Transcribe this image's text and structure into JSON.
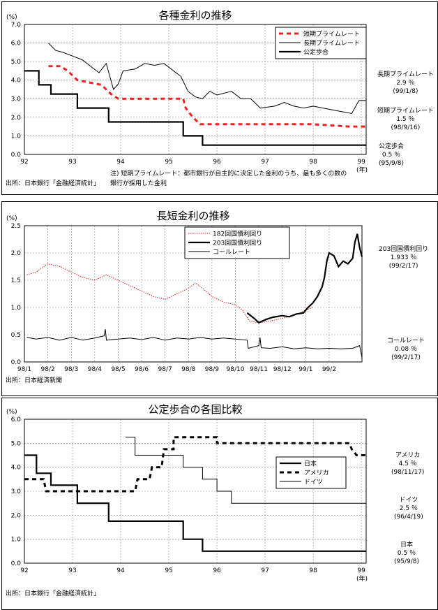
{
  "chart_data": [
    {
      "type": "line",
      "title": "各種金利の推移",
      "y_unit": "(%)",
      "x_unit": "(年)",
      "ylim": [
        0,
        7
      ],
      "xlim": [
        1992,
        1999.1
      ],
      "yticks": [
        "0.0",
        "1.0",
        "2.0",
        "3.0",
        "4.0",
        "5.0",
        "6.0",
        "7.0"
      ],
      "xticks": [
        "92",
        "93",
        "94",
        "95",
        "96",
        "97",
        "98",
        "99"
      ],
      "grid": true,
      "legend_position": "top-right",
      "series": [
        {
          "name": "短期プライムレート",
          "style": "dashed",
          "color": "#ee2222",
          "points": [
            [
              1992.5,
              4.75
            ],
            [
              1992.75,
              4.75
            ],
            [
              1992.9,
              4.5
            ],
            [
              1993.1,
              4.0
            ],
            [
              1993.6,
              3.75
            ],
            [
              1993.8,
              3.25
            ],
            [
              1993.95,
              3.0
            ],
            [
              1995.3,
              3.0
            ],
            [
              1995.35,
              2.5
            ],
            [
              1995.5,
              2.0
            ],
            [
              1995.65,
              1.625
            ],
            [
              1998.0,
              1.625
            ],
            [
              1998.75,
              1.5
            ],
            [
              1999.1,
              1.5
            ]
          ]
        },
        {
          "name": "長期プライムレート",
          "style": "solid-thin",
          "color": "#000000",
          "points": [
            [
              1992.5,
              6.0
            ],
            [
              1992.65,
              5.6
            ],
            [
              1992.8,
              5.5
            ],
            [
              1993.0,
              5.3
            ],
            [
              1993.2,
              5.1
            ],
            [
              1993.4,
              4.7
            ],
            [
              1993.55,
              4.4
            ],
            [
              1993.7,
              4.9
            ],
            [
              1993.85,
              3.5
            ],
            [
              1993.95,
              3.8
            ],
            [
              1994.05,
              4.5
            ],
            [
              1994.3,
              4.6
            ],
            [
              1994.5,
              4.9
            ],
            [
              1994.7,
              4.8
            ],
            [
              1994.9,
              4.9
            ],
            [
              1995.25,
              4.2
            ],
            [
              1995.4,
              3.4
            ],
            [
              1995.55,
              3.1
            ],
            [
              1995.7,
              3.0
            ],
            [
              1995.85,
              3.4
            ],
            [
              1996.0,
              3.2
            ],
            [
              1996.3,
              3.4
            ],
            [
              1996.5,
              3.0
            ],
            [
              1996.7,
              3.0
            ],
            [
              1996.9,
              2.5
            ],
            [
              1997.2,
              2.6
            ],
            [
              1997.4,
              2.8
            ],
            [
              1997.6,
              2.6
            ],
            [
              1997.8,
              2.5
            ],
            [
              1998.0,
              2.6
            ],
            [
              1998.2,
              2.5
            ],
            [
              1998.6,
              2.3
            ],
            [
              1998.8,
              2.2
            ],
            [
              1998.95,
              2.9
            ],
            [
              1999.1,
              2.9
            ]
          ]
        },
        {
          "name": "公定歩合",
          "style": "solid-thick",
          "color": "#000000",
          "points": [
            [
              1992.0,
              4.5
            ],
            [
              1992.3,
              4.5
            ],
            [
              1992.3,
              3.75
            ],
            [
              1992.55,
              3.75
            ],
            [
              1992.55,
              3.25
            ],
            [
              1993.1,
              3.25
            ],
            [
              1993.1,
              2.5
            ],
            [
              1993.75,
              2.5
            ],
            [
              1993.75,
              1.75
            ],
            [
              1995.3,
              1.75
            ],
            [
              1995.3,
              1.0
            ],
            [
              1995.7,
              1.0
            ],
            [
              1995.7,
              0.5
            ],
            [
              1999.1,
              0.5
            ]
          ]
        }
      ],
      "side_notes": [
        {
          "name": "長期プライムレート",
          "value": "2.9 ％",
          "date": "(99/1/8)"
        },
        {
          "name": "短期プライムレート",
          "value": "1.5 ％",
          "date": "(98/9/16)"
        },
        {
          "name": "公定歩合",
          "value": "0.5 ％",
          "date": "(95/9/8)"
        }
      ],
      "notes": [
        "注) 短期プライムレート：都市銀行が自主的に決定した金利のうち、最も多くの数の",
        "銀行が採用した金利"
      ],
      "source": "出所：日本銀行「金融経済統計」"
    },
    {
      "type": "line",
      "title": "長短金利の推移",
      "y_unit": "(%)",
      "ylim": [
        0,
        2.5
      ],
      "xlim": [
        0,
        14.4
      ],
      "yticks": [
        "0.0",
        "0.5",
        "1.0",
        "1.5",
        "2.0",
        "2.5"
      ],
      "xticks": [
        "98/1",
        "98/2",
        "98/3",
        "98/4",
        "98/5",
        "98/6",
        "98/7",
        "98/8",
        "98/9",
        "98/10",
        "98/11",
        "98/12",
        "99/1",
        "99/2"
      ],
      "grid": true,
      "legend_position": "top-center",
      "series": [
        {
          "name": "182回国債利回り",
          "style": "dotted",
          "color": "#ee2222",
          "points": [
            [
              0.1,
              1.6
            ],
            [
              0.5,
              1.65
            ],
            [
              1.0,
              1.8
            ],
            [
              1.5,
              1.75
            ],
            [
              2.0,
              1.65
            ],
            [
              2.5,
              1.55
            ],
            [
              3.0,
              1.5
            ],
            [
              3.5,
              1.6
            ],
            [
              4.0,
              1.5
            ],
            [
              4.5,
              1.4
            ],
            [
              5.0,
              1.3
            ],
            [
              5.5,
              1.2
            ],
            [
              6.0,
              1.15
            ],
            [
              6.5,
              1.25
            ],
            [
              7.0,
              1.35
            ],
            [
              7.3,
              1.45
            ],
            [
              7.6,
              1.35
            ],
            [
              8.0,
              1.2
            ],
            [
              8.5,
              1.1
            ],
            [
              9.0,
              1.05
            ],
            [
              9.3,
              0.95
            ],
            [
              9.6,
              0.75
            ],
            [
              10.0,
              0.72
            ],
            [
              10.5,
              0.75
            ],
            [
              11.0,
              0.8
            ],
            [
              11.5,
              0.85
            ],
            [
              12.0,
              0.95
            ],
            [
              12.3,
              1.0
            ]
          ]
        },
        {
          "name": "203回国債利回り",
          "style": "solid-thick",
          "color": "#000000",
          "points": [
            [
              9.5,
              0.9
            ],
            [
              9.8,
              0.8
            ],
            [
              10.0,
              0.72
            ],
            [
              10.3,
              0.78
            ],
            [
              10.6,
              0.82
            ],
            [
              11.0,
              0.85
            ],
            [
              11.3,
              0.83
            ],
            [
              11.6,
              0.88
            ],
            [
              11.9,
              0.9
            ],
            [
              12.1,
              1.0
            ],
            [
              12.3,
              1.08
            ],
            [
              12.5,
              1.2
            ],
            [
              12.7,
              1.38
            ],
            [
              12.8,
              1.55
            ],
            [
              12.9,
              1.85
            ],
            [
              13.0,
              2.0
            ],
            [
              13.2,
              1.95
            ],
            [
              13.4,
              1.75
            ],
            [
              13.6,
              1.85
            ],
            [
              13.8,
              1.8
            ],
            [
              14.0,
              1.9
            ],
            [
              14.1,
              2.2
            ],
            [
              14.2,
              2.35
            ],
            [
              14.3,
              2.1
            ],
            [
              14.4,
              1.93
            ]
          ]
        },
        {
          "name": "コールレート",
          "style": "solid-thin",
          "color": "#000000",
          "points": [
            [
              0.1,
              0.45
            ],
            [
              0.5,
              0.42
            ],
            [
              1.0,
              0.45
            ],
            [
              1.5,
              0.4
            ],
            [
              2.0,
              0.45
            ],
            [
              2.5,
              0.4
            ],
            [
              3.0,
              0.44
            ],
            [
              3.4,
              0.48
            ],
            [
              3.45,
              0.6
            ],
            [
              3.5,
              0.4
            ],
            [
              4.0,
              0.42
            ],
            [
              4.5,
              0.44
            ],
            [
              5.0,
              0.41
            ],
            [
              5.5,
              0.45
            ],
            [
              6.0,
              0.4
            ],
            [
              6.5,
              0.44
            ],
            [
              7.0,
              0.42
            ],
            [
              7.5,
              0.45
            ],
            [
              8.0,
              0.42
            ],
            [
              8.5,
              0.44
            ],
            [
              9.0,
              0.42
            ],
            [
              9.5,
              0.4
            ],
            [
              9.55,
              0.25
            ],
            [
              10.0,
              0.3
            ],
            [
              10.05,
              0.45
            ],
            [
              10.1,
              0.26
            ],
            [
              10.5,
              0.25
            ],
            [
              11.0,
              0.28
            ],
            [
              11.5,
              0.24
            ],
            [
              12.0,
              0.26
            ],
            [
              12.5,
              0.24
            ],
            [
              13.0,
              0.25
            ],
            [
              13.5,
              0.24
            ],
            [
              14.0,
              0.25
            ],
            [
              14.3,
              0.3
            ],
            [
              14.4,
              0.08
            ]
          ]
        }
      ],
      "side_notes": [
        {
          "name": "203回国債利回り",
          "value": "1.933 ％",
          "date": "(99/2/17)"
        },
        {
          "name": "コールレート",
          "value": "0.08 ％",
          "date": "(99/2/17)"
        }
      ],
      "source": "出所：日本経済新聞"
    },
    {
      "type": "line",
      "title": "公定歩合の各国比較",
      "y_unit": "(%)",
      "x_unit": "(年)",
      "ylim": [
        0,
        6
      ],
      "xlim": [
        1992,
        1999.1
      ],
      "yticks": [
        "0.0",
        "1.0",
        "2.0",
        "3.0",
        "4.0",
        "5.0",
        "6.0"
      ],
      "xticks": [
        "92",
        "93",
        "94",
        "95",
        "96",
        "97",
        "98",
        "99"
      ],
      "grid": true,
      "legend_position": "right",
      "series": [
        {
          "name": "日本",
          "style": "solid-thick",
          "color": "#000000",
          "points": [
            [
              1992.0,
              4.5
            ],
            [
              1992.25,
              4.5
            ],
            [
              1992.25,
              3.75
            ],
            [
              1992.55,
              3.75
            ],
            [
              1992.55,
              3.25
            ],
            [
              1993.1,
              3.25
            ],
            [
              1993.1,
              2.5
            ],
            [
              1993.75,
              2.5
            ],
            [
              1993.75,
              1.75
            ],
            [
              1995.3,
              1.75
            ],
            [
              1995.3,
              1.0
            ],
            [
              1995.7,
              1.0
            ],
            [
              1995.7,
              0.5
            ],
            [
              1999.1,
              0.5
            ]
          ]
        },
        {
          "name": "アメリカ",
          "style": "dashed",
          "color": "#000000",
          "points": [
            [
              1992.0,
              3.5
            ],
            [
              1992.4,
              3.5
            ],
            [
              1992.45,
              3.0
            ],
            [
              1994.3,
              3.0
            ],
            [
              1994.35,
              3.5
            ],
            [
              1994.6,
              3.5
            ],
            [
              1994.65,
              4.0
            ],
            [
              1994.85,
              4.0
            ],
            [
              1994.9,
              4.75
            ],
            [
              1995.1,
              4.75
            ],
            [
              1995.1,
              5.25
            ],
            [
              1996.0,
              5.25
            ],
            [
              1996.0,
              5.0
            ],
            [
              1998.75,
              5.0
            ],
            [
              1998.8,
              4.75
            ],
            [
              1998.9,
              4.5
            ],
            [
              1999.1,
              4.5
            ]
          ]
        },
        {
          "name": "ドイツ",
          "style": "solid-thin",
          "color": "#000000",
          "points": [
            [
              1994.1,
              5.25
            ],
            [
              1994.3,
              5.25
            ],
            [
              1994.3,
              4.5
            ],
            [
              1995.3,
              4.5
            ],
            [
              1995.3,
              4.0
            ],
            [
              1995.7,
              4.0
            ],
            [
              1995.7,
              3.5
            ],
            [
              1996.0,
              3.5
            ],
            [
              1996.0,
              3.0
            ],
            [
              1996.3,
              3.0
            ],
            [
              1996.3,
              2.5
            ],
            [
              1999.1,
              2.5
            ]
          ]
        }
      ],
      "side_notes": [
        {
          "name": "アメリカ",
          "value": "4.5 ％",
          "date": "(98/11/17)"
        },
        {
          "name": "ドイツ",
          "value": "2.5 ％",
          "date": "(96/4/19)"
        },
        {
          "name": "日本",
          "value": "0.5 ％",
          "date": "(95/9/8)"
        }
      ],
      "source": "出所：日本銀行「金融経済統計」"
    }
  ]
}
